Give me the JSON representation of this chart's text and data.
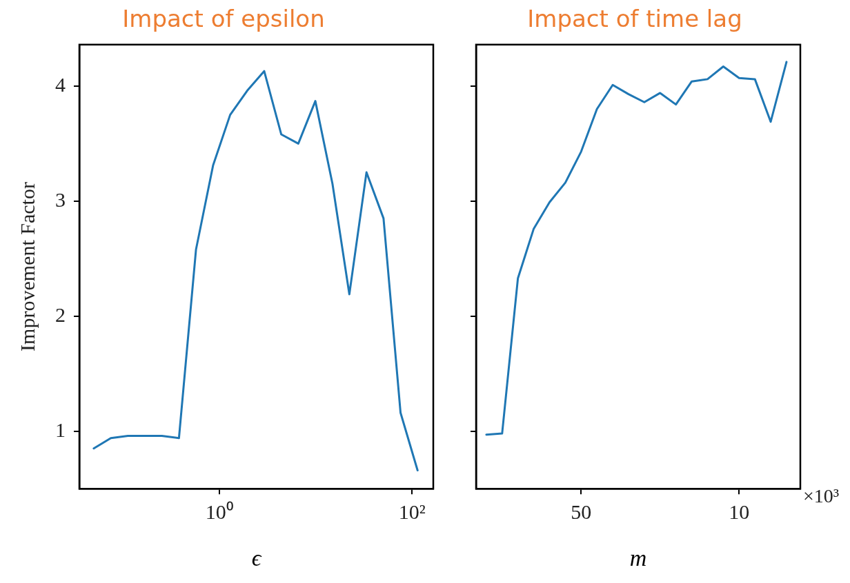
{
  "chart_data": [
    {
      "type": "line",
      "title": "Impact of epsilon",
      "xlabel": "ϵ",
      "ylabel": "Improvement Factor",
      "log": "x",
      "grid": false,
      "marker": "none",
      "line_style": "solid",
      "x": [
        0.0494,
        0.0743,
        0.1117,
        0.168,
        0.252,
        0.379,
        0.57,
        0.857,
        1.29,
        1.94,
        2.91,
        4.38,
        6.58,
        9.89,
        14.9,
        22.3,
        33.6,
        50.5,
        75.9,
        114
      ],
      "series": [
        {
          "color": "#1f77b4",
          "values": [
            0.85,
            0.94,
            0.96,
            0.96,
            0.96,
            0.94,
            2.58,
            3.31,
            3.75,
            3.96,
            4.13,
            3.58,
            3.5,
            3.87,
            3.15,
            2.19,
            3.25,
            2.85,
            1.16,
            0.66
          ]
        }
      ],
      "xlim": [
        0.035,
        166
      ],
      "xticks": [
        {
          "value": 1,
          "label": "10⁰"
        },
        {
          "value": 100,
          "label": "10²"
        }
      ],
      "ylim": [
        0.5,
        4.36
      ],
      "yticks": [
        1,
        2,
        3,
        4
      ]
    },
    {
      "type": "line",
      "title": "Impact of time lag",
      "xlabel": "m",
      "annotations": [
        "×10³"
      ],
      "grid": false,
      "marker": "none",
      "line_style": "solid",
      "tick_labels": "x",
      "x": [
        74,
        70,
        66,
        62,
        58,
        54,
        50,
        46,
        42,
        38,
        34,
        30,
        26,
        22,
        18,
        14,
        10,
        6,
        2,
        -2
      ],
      "series": [
        {
          "color": "#1f77b4",
          "values": [
            0.97,
            0.98,
            2.33,
            2.76,
            2.99,
            3.16,
            3.43,
            3.8,
            4.01,
            3.93,
            3.86,
            3.94,
            3.84,
            4.04,
            4.06,
            4.17,
            4.07,
            4.06,
            3.69,
            4.21
          ]
        }
      ],
      "xlim": [
        76.6,
        -5.5
      ],
      "xticks": [
        50,
        10
      ],
      "ylim": [
        0.5,
        4.36
      ],
      "yticks": [
        1,
        2,
        3,
        4
      ]
    }
  ]
}
